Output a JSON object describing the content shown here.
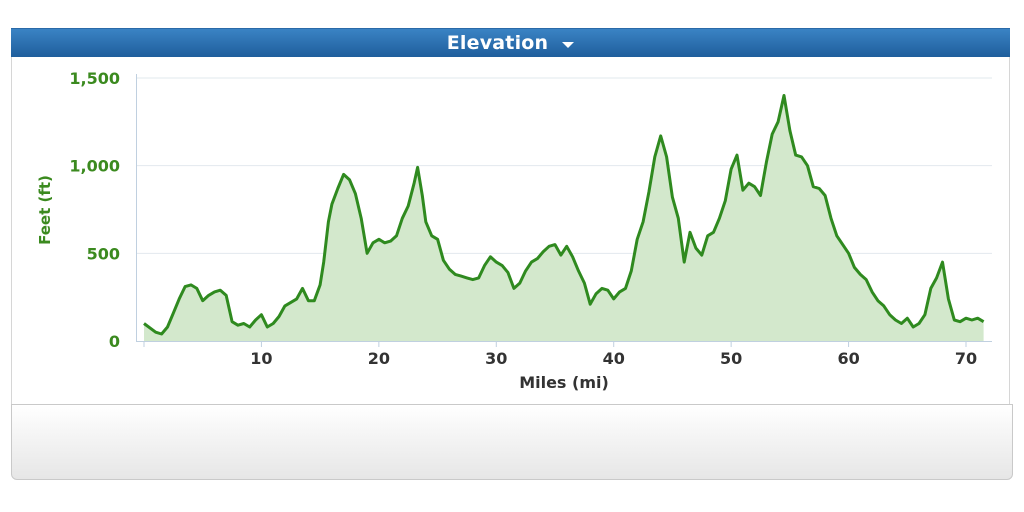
{
  "header": {
    "title": "Elevation",
    "caret_icon": "caret-down-icon"
  },
  "colors": {
    "header_bg": "#2a6fae",
    "line": "#2f8a1f",
    "fill": "#d3e8cc",
    "y_text": "#3b8a1f",
    "x_text": "#333333",
    "grid": "#e2e8ee"
  },
  "chart_data": {
    "type": "area",
    "title": "Elevation",
    "xlabel": "Miles (mi)",
    "ylabel": "Feet (ft)",
    "xlim": [
      0,
      72
    ],
    "ylim": [
      0,
      1500
    ],
    "x_ticks": [
      10,
      20,
      30,
      40,
      50,
      60,
      70
    ],
    "y_ticks": [
      0,
      500,
      1000,
      1500
    ],
    "y_tick_labels": [
      "0",
      "500",
      "1,000",
      "1,500"
    ],
    "grid": true,
    "legend": "none",
    "series": [
      {
        "name": "Elevation",
        "x": [
          0,
          1,
          1.5,
          2,
          2.5,
          3,
          3.5,
          4,
          4.5,
          5,
          5.5,
          6,
          6.5,
          7,
          7.5,
          8,
          8.5,
          9,
          9.5,
          10,
          10.5,
          11,
          11.5,
          12,
          12.5,
          13,
          13.5,
          14,
          14.5,
          15,
          15.3,
          15.7,
          16,
          16.5,
          17,
          17.5,
          18,
          18.5,
          19,
          19.5,
          20,
          20.5,
          21,
          21.5,
          22,
          22.5,
          23,
          23.3,
          23.7,
          24,
          24.5,
          25,
          25.5,
          26,
          26.5,
          27,
          27.5,
          28,
          28.5,
          29,
          29.5,
          30,
          30.5,
          31,
          31.5,
          32,
          32.5,
          33,
          33.5,
          34,
          34.5,
          35,
          35.5,
          36,
          36.5,
          37,
          37.5,
          38,
          38.5,
          39,
          39.5,
          40,
          40.5,
          41,
          41.5,
          42,
          42.5,
          43,
          43.5,
          44,
          44.5,
          45,
          45.5,
          46,
          46.5,
          47,
          47.5,
          48,
          48.5,
          49,
          49.5,
          50,
          50.5,
          51,
          51.5,
          52,
          52.5,
          53,
          53.5,
          54,
          54.5,
          55,
          55.5,
          56,
          56.5,
          57,
          57.5,
          58,
          58.5,
          59,
          59.5,
          60,
          60.5,
          61,
          61.5,
          62,
          62.5,
          63,
          63.5,
          64,
          64.5,
          65,
          65.5,
          66,
          66.5,
          67,
          67.5,
          68,
          68.5,
          69,
          69.5,
          70,
          70.5,
          71,
          71.5
        ],
        "y": [
          100,
          50,
          40,
          80,
          160,
          240,
          310,
          320,
          300,
          230,
          260,
          280,
          290,
          260,
          110,
          90,
          100,
          80,
          120,
          150,
          80,
          100,
          140,
          200,
          220,
          240,
          300,
          230,
          230,
          320,
          450,
          680,
          780,
          870,
          950,
          920,
          840,
          700,
          500,
          560,
          580,
          560,
          570,
          600,
          700,
          770,
          900,
          990,
          830,
          680,
          600,
          580,
          460,
          410,
          380,
          370,
          360,
          350,
          360,
          430,
          480,
          450,
          430,
          390,
          300,
          330,
          400,
          450,
          470,
          510,
          540,
          550,
          490,
          540,
          480,
          400,
          330,
          210,
          270,
          300,
          290,
          240,
          280,
          300,
          400,
          580,
          680,
          850,
          1050,
          1170,
          1050,
          820,
          700,
          450,
          620,
          530,
          490,
          600,
          620,
          700,
          800,
          980,
          1060,
          860,
          900,
          880,
          830,
          1020,
          1180,
          1250,
          1400,
          1200,
          1060,
          1050,
          1000,
          880,
          870,
          830,
          700,
          600,
          550,
          500,
          420,
          380,
          350,
          280,
          230,
          200,
          150,
          120,
          100,
          130,
          80,
          100,
          150,
          300,
          360,
          450,
          240,
          120,
          110,
          130,
          120,
          130,
          110
        ]
      }
    ]
  }
}
